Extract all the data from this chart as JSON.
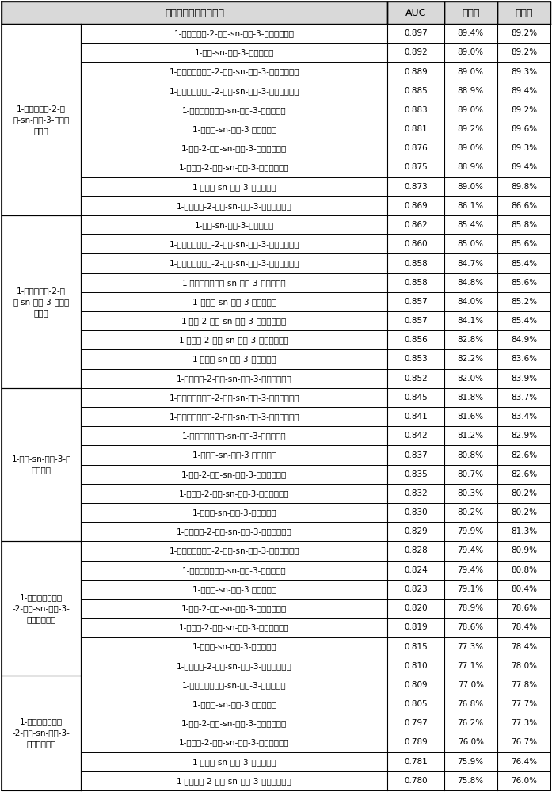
{
  "col_headers": [
    "两个差异代谢产物联合",
    "AUC",
    "灵敏度",
    "特异性"
  ],
  "groups": [
    {
      "group_label": "1-花生四烯酸-2-羟\n基-sn-甘油-3-磷脂酰\n乙醇胺",
      "rows": [
        [
          "1-二十碳烯酸-2-羟基-sn-甘油-3-磷脂酰乙醇胺",
          "0.897",
          "89.4%",
          "89.2%"
        ],
        [
          "1-油酸-sn-甘油-3-磷脂酰胆碱",
          "0.892",
          "89.0%",
          "89.2%"
        ],
        [
          "1-二十二碳六烯酸-2-羟基-sn-甘油-3-磷脂酰乙醇胺",
          "0.889",
          "89.0%",
          "89.3%"
        ],
        [
          "1-二十二碳五烯酸-2-羟基-sn-甘油-3-磷脂酰乙醇胺",
          "0.885",
          "88.9%",
          "89.4%"
        ],
        [
          "1-二十二碳五烯酸-sn-甘油-3-磷脂酰胆碱",
          "0.883",
          "89.0%",
          "89.2%"
        ],
        [
          "1-硬脂酸-sn-甘油-3 磷脂酰胆碱",
          "0.881",
          "89.2%",
          "89.6%"
        ],
        [
          "1-油酸-2-羟基-sn-甘油-3-磷脂酰乙醇胺",
          "0.876",
          "89.0%",
          "89.3%"
        ],
        [
          "1-棕榈酸-2-羟基-sn-甘油-3-磷脂酰乙醇胺",
          "0.875",
          "88.9%",
          "89.4%"
        ],
        [
          "1-棕榈酸-sn-甘油-3-磷脂酰胆碱",
          "0.873",
          "89.0%",
          "89.8%"
        ],
        [
          "1-十八碳酸-2-羟基-sn-甘油-3-磷脂酰乙醇胺",
          "0.869",
          "86.1%",
          "86.6%"
        ]
      ]
    },
    {
      "group_label": "1-二十碳烯酸-2-羟\n基-sn-甘油-3-磷脂酰\n乙醇胺",
      "rows": [
        [
          "1-油酸-sn-甘油-3-磷脂酰胆碱",
          "0.862",
          "85.4%",
          "85.8%"
        ],
        [
          "1-二十二碳六烯酸-2-羟基-sn-甘油-3-磷脂酰乙醇胺",
          "0.860",
          "85.0%",
          "85.6%"
        ],
        [
          "1-二十二碳五烯酸-2-羟基-sn-甘油-3-磷脂酰乙醇胺",
          "0.858",
          "84.7%",
          "85.4%"
        ],
        [
          "1-二十二碳五烯酸-sn-甘油-3-磷脂酰胆碱",
          "0.858",
          "84.8%",
          "85.6%"
        ],
        [
          "1-硬脂酸-sn-甘油-3 磷脂酰胆碱",
          "0.857",
          "84.0%",
          "85.2%"
        ],
        [
          "1-油酸-2-羟基-sn-甘油-3-磷脂酰乙醇胺",
          "0.857",
          "84.1%",
          "85.4%"
        ],
        [
          "1-棕榈酸-2-羟基-sn-甘油-3-磷脂酰乙醇胺",
          "0.856",
          "82.8%",
          "84.9%"
        ],
        [
          "1-棕榈酸-sn-甘油-3-磷脂酰胆碱",
          "0.853",
          "82.2%",
          "83.6%"
        ],
        [
          "1-十八碳酸-2-羟基-sn-甘油-3-磷脂酰乙醇胺",
          "0.852",
          "82.0%",
          "83.9%"
        ]
      ]
    },
    {
      "group_label": "1-油酸-sn-甘油-3-磷\n脂酰胆碱",
      "rows": [
        [
          "1-二十二碳六烯酸-2-羟基-sn-甘油-3-磷脂酰乙醇胺",
          "0.845",
          "81.8%",
          "83.7%"
        ],
        [
          "1-二十二碳五烯酸-2-羟基-sn-甘油-3-磷脂酰乙醇胺",
          "0.841",
          "81.6%",
          "83.4%"
        ],
        [
          "1-二十二碳五烯酸-sn-甘油-3-磷脂酰胆碱",
          "0.842",
          "81.2%",
          "82.9%"
        ],
        [
          "1-硬脂酸-sn-甘油-3 磷脂酰胆碱",
          "0.837",
          "80.8%",
          "82.6%"
        ],
        [
          "1-油酸-2-羟基-sn-甘油-3-磷脂酰乙醇胺",
          "0.835",
          "80.7%",
          "82.6%"
        ],
        [
          "1-棕榈酸-2-羟基-sn-甘油-3-磷脂酰乙醇胺",
          "0.832",
          "80.3%",
          "80.2%"
        ],
        [
          "1-棕榈酸-sn-甘油-3-磷脂酰胆碱",
          "0.830",
          "80.2%",
          "80.2%"
        ],
        [
          "1-十八碳酸-2-羟基-sn-甘油-3-磷脂酰乙醇胺",
          "0.829",
          "79.9%",
          "81.3%"
        ]
      ]
    },
    {
      "group_label": "1-二十二碳六烯酸\n-2-羟基-sn-甘油-3-\n磷脂酰乙醇胺",
      "rows": [
        [
          "1-二十二碳五烯酸-2-羟基-sn-甘油-3-磷脂酰乙醇胺",
          "0.828",
          "79.4%",
          "80.9%"
        ],
        [
          "1-二十二碳五烯酸-sn-甘油-3-磷脂酰胆碱",
          "0.824",
          "79.4%",
          "80.8%"
        ],
        [
          "1-硬脂酸-sn-甘油-3 磷脂酰胆碱",
          "0.823",
          "79.1%",
          "80.4%"
        ],
        [
          "1-油酸-2-羟基-sn-甘油-3-磷脂酰乙醇胺",
          "0.820",
          "78.9%",
          "78.6%"
        ],
        [
          "1-棕榈酸-2-羟基-sn-甘油-3-磷脂酰乙醇胺",
          "0.819",
          "78.6%",
          "78.4%"
        ],
        [
          "1-棕榈酸-sn-甘油-3-磷脂酰胆碱",
          "0.815",
          "77.3%",
          "78.4%"
        ],
        [
          "1-十八碳酸-2-羟基-sn-甘油-3-磷脂酰乙醇胺",
          "0.810",
          "77.1%",
          "78.0%"
        ]
      ]
    },
    {
      "group_label": "1-二十二碳五烯酸\n-2-羟基-sn-甘油-3-\n磷脂酰乙醇胺",
      "rows": [
        [
          "1-二十二碳五烯酸-sn-甘油-3-磷脂酰胆碱",
          "0.809",
          "77.0%",
          "77.8%"
        ],
        [
          "1-硬脂酸-sn-甘油-3 磷脂酰胆碱",
          "0.805",
          "76.8%",
          "77.7%"
        ],
        [
          "1-油酸-2-羟基-sn-甘油-3-磷脂酰乙醇胺",
          "0.797",
          "76.2%",
          "77.3%"
        ],
        [
          "1-棕榈酸-2-羟基-sn-甘油-3-磷脂酰乙醇胺",
          "0.789",
          "76.0%",
          "76.7%"
        ],
        [
          "1-棕榈酸-sn-甘油-3-磷脂酰胆碱",
          "0.781",
          "75.9%",
          "76.4%"
        ],
        [
          "1-十八碳酸-2-羟基-sn-甘油-3-磷脂酰乙醇胺",
          "0.780",
          "75.8%",
          "76.0%"
        ]
      ]
    }
  ],
  "header_bg": "#d9d9d9",
  "border_color": "#000000",
  "text_color": "#000000",
  "fig_width": 6.97,
  "fig_height": 10.0,
  "dpi": 100
}
